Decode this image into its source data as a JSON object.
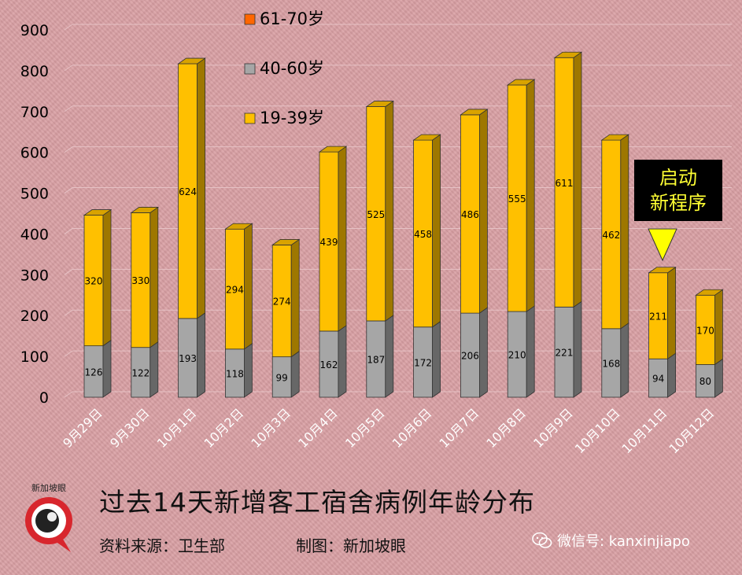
{
  "chart_data": {
    "type": "bar",
    "stacked": true,
    "categories": [
      "9月29日",
      "9月30日",
      "10月1日",
      "10月2日",
      "10月3日",
      "10月4日",
      "10月5日",
      "10月6日",
      "10月7日",
      "10月8日",
      "10月9日",
      "10月10日",
      "10月11日",
      "10月12日"
    ],
    "series": [
      {
        "name": "40-60岁",
        "color": "#a6a6a6",
        "values": [
          126,
          122,
          193,
          118,
          99,
          162,
          187,
          172,
          206,
          210,
          221,
          168,
          94,
          80
        ]
      },
      {
        "name": "19-39岁",
        "color": "#ffc000",
        "values": [
          320,
          330,
          624,
          294,
          274,
          439,
          525,
          458,
          486,
          555,
          611,
          462,
          211,
          170
        ]
      },
      {
        "name": "61-70岁",
        "color": "#ff6600",
        "values": [
          0,
          0,
          0,
          0,
          0,
          0,
          0,
          0,
          0,
          0,
          0,
          0,
          0,
          0
        ]
      }
    ],
    "legend_order": [
      "61-70岁",
      "40-60岁",
      "19-39岁"
    ],
    "legend_position": "top-left",
    "ylim": [
      0,
      900
    ],
    "yticks": [
      0,
      100,
      200,
      300,
      400,
      500,
      600,
      700,
      800,
      900
    ],
    "grid": true,
    "title": "过去14天新增客工宿舍病例年龄分布"
  },
  "footer": {
    "source": "资料来源：卫生部",
    "credit": "制图：新加坡眼",
    "wechat": "微信号: kanxinjiapo",
    "logo_text": "新加坡眼"
  },
  "callout": {
    "line1": "启动",
    "line2": "新程序"
  }
}
